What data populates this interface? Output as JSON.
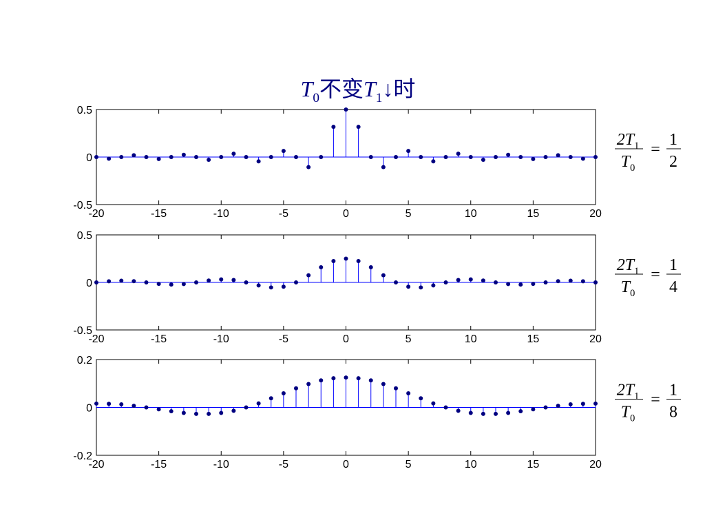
{
  "title": [
    {
      "text": "T"
    },
    {
      "text": "0",
      "sub": true
    },
    {
      "text": "不变"
    },
    {
      "text": "T"
    },
    {
      "text": "1",
      "sub": true
    },
    {
      "text": "↓时"
    }
  ],
  "chart_data": [
    {
      "type": "stem",
      "color": "#0000ff",
      "marker_color": "#000080",
      "x": [
        -20,
        -19,
        -18,
        -17,
        -16,
        -15,
        -14,
        -13,
        -12,
        -11,
        -10,
        -9,
        -8,
        -7,
        -6,
        -5,
        -4,
        -3,
        -2,
        -1,
        0,
        1,
        2,
        3,
        4,
        5,
        6,
        7,
        8,
        9,
        10,
        11,
        12,
        13,
        14,
        15,
        16,
        17,
        18,
        19,
        20
      ],
      "values": [
        0,
        -0.017,
        0,
        0.019,
        0,
        -0.021,
        0,
        0.024,
        0,
        -0.029,
        0,
        0.035,
        0,
        -0.045,
        0,
        0.064,
        0,
        -0.106,
        0,
        0.318,
        0.5,
        0.318,
        0,
        -0.106,
        0,
        0.064,
        0,
        -0.045,
        0,
        0.035,
        0,
        -0.029,
        0,
        0.024,
        0,
        -0.021,
        0,
        0.019,
        0,
        -0.017,
        0
      ],
      "xlim": [
        -20,
        20
      ],
      "xticks": [
        -20,
        -15,
        -10,
        -5,
        0,
        5,
        10,
        15,
        20
      ],
      "ylim": [
        -0.5,
        0.5
      ],
      "yticks": [
        -0.5,
        0,
        0.5
      ],
      "annotation": {
        "numerator": [
          {
            "text": "2T"
          },
          {
            "text": "1",
            "sub": true
          }
        ],
        "denominator": [
          {
            "text": "T"
          },
          {
            "text": "0",
            "sub": true
          }
        ],
        "eq": "=",
        "rhs_numerator": "1",
        "rhs_denominator": "2"
      }
    },
    {
      "type": "stem",
      "color": "#0000ff",
      "marker_color": "#000080",
      "x": [
        -20,
        -19,
        -18,
        -17,
        -16,
        -15,
        -14,
        -13,
        -12,
        -11,
        -10,
        -9,
        -8,
        -7,
        -6,
        -5,
        -4,
        -3,
        -2,
        -1,
        0,
        1,
        2,
        3,
        4,
        5,
        6,
        7,
        8,
        9,
        10,
        11,
        12,
        13,
        14,
        15,
        16,
        17,
        18,
        19,
        20
      ],
      "values": [
        0,
        0.012,
        0.018,
        0.013,
        0,
        -0.015,
        -0.023,
        -0.017,
        0,
        0.02,
        0.032,
        0.025,
        0,
        -0.032,
        -0.053,
        -0.045,
        0,
        0.075,
        0.159,
        0.225,
        0.25,
        0.225,
        0.159,
        0.075,
        0,
        -0.045,
        -0.053,
        -0.032,
        0,
        0.025,
        0.032,
        0.02,
        0,
        -0.017,
        -0.023,
        -0.015,
        0,
        0.013,
        0.018,
        0.012,
        0
      ],
      "xlim": [
        -20,
        20
      ],
      "xticks": [
        -20,
        -15,
        -10,
        -5,
        0,
        5,
        10,
        15,
        20
      ],
      "ylim": [
        -0.5,
        0.5
      ],
      "yticks": [
        -0.5,
        0,
        0.5
      ],
      "annotation": {
        "numerator": [
          {
            "text": "2T"
          },
          {
            "text": "1",
            "sub": true
          }
        ],
        "denominator": [
          {
            "text": "T"
          },
          {
            "text": "0",
            "sub": true
          }
        ],
        "eq": "=",
        "rhs_numerator": "1",
        "rhs_denominator": "4"
      }
    },
    {
      "type": "stem",
      "color": "#0000ff",
      "marker_color": "#000080",
      "x": [
        -20,
        -19,
        -18,
        -17,
        -16,
        -15,
        -14,
        -13,
        -12,
        -11,
        -10,
        -9,
        -8,
        -7,
        -6,
        -5,
        -4,
        -3,
        -2,
        -1,
        0,
        1,
        2,
        3,
        4,
        5,
        6,
        7,
        8,
        9,
        10,
        11,
        12,
        13,
        14,
        15,
        16,
        17,
        18,
        19,
        20
      ],
      "values": [
        0.016,
        0.015,
        0.013,
        0.007,
        0,
        -0.008,
        -0.016,
        -0.023,
        -0.027,
        -0.027,
        -0.023,
        -0.014,
        0,
        0.017,
        0.038,
        0.059,
        0.08,
        0.098,
        0.113,
        0.122,
        0.125,
        0.122,
        0.113,
        0.098,
        0.08,
        0.059,
        0.038,
        0.017,
        0,
        -0.014,
        -0.023,
        -0.027,
        -0.027,
        -0.023,
        -0.016,
        -0.008,
        0,
        0.007,
        0.013,
        0.015,
        0.016
      ],
      "xlim": [
        -20,
        20
      ],
      "xticks": [
        -20,
        -15,
        -10,
        -5,
        0,
        5,
        10,
        15,
        20
      ],
      "ylim": [
        -0.2,
        0.2
      ],
      "yticks": [
        -0.2,
        0,
        0.2
      ],
      "annotation": {
        "numerator": [
          {
            "text": "2T"
          },
          {
            "text": "1",
            "sub": true
          }
        ],
        "denominator": [
          {
            "text": "T"
          },
          {
            "text": "0",
            "sub": true
          }
        ],
        "eq": "=",
        "rhs_numerator": "1",
        "rhs_denominator": "8"
      }
    }
  ]
}
